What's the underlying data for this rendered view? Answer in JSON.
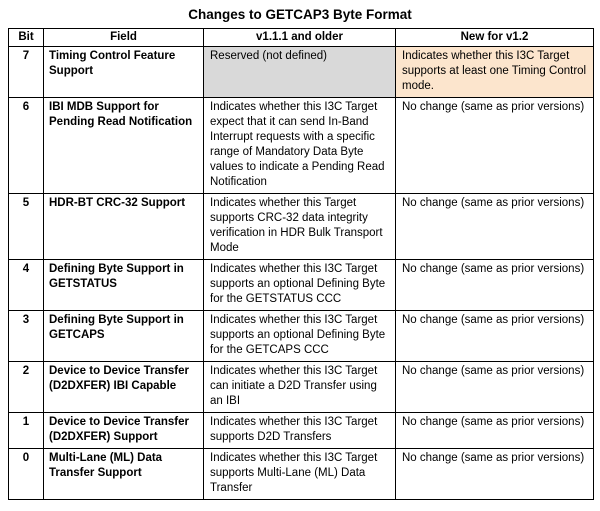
{
  "title": "Changes to GETCAP3 Byte Format",
  "colors": {
    "highlight_gray": "#D9D9D9",
    "highlight_orange": "#FCE5CD",
    "border": "#000000"
  },
  "table": {
    "headers": [
      "Bit",
      "Field",
      "v1.1.1 and older",
      "New for v1.2"
    ],
    "rows": [
      {
        "bit": "7",
        "field": "Timing Control Feature Support",
        "old": "Reserved (not defined)",
        "new": "Indicates whether this I3C Target supports at least one Timing Control mode.",
        "old_highlight": "gray",
        "new_highlight": "orange"
      },
      {
        "bit": "6",
        "field": "IBI MDB Support for Pending Read Notification",
        "old": "Indicates whether this I3C Target expect that it can send In-Band Interrupt requests with a specific range of Mandatory Data Byte values to indicate a Pending Read Notification",
        "new": "No change (same as prior versions)",
        "old_highlight": null,
        "new_highlight": null
      },
      {
        "bit": "5",
        "field": "HDR-BT CRC-32 Support",
        "old": "Indicates whether this Target supports CRC-32 data integrity verification in HDR Bulk Transport Mode",
        "new": "No change (same as prior versions)",
        "old_highlight": null,
        "new_highlight": null
      },
      {
        "bit": "4",
        "field": "Defining Byte Support in GETSTATUS",
        "old": "Indicates whether this I3C Target supports an optional Defining Byte for the GETSTATUS CCC",
        "new": "No change (same as prior versions)",
        "old_highlight": null,
        "new_highlight": null
      },
      {
        "bit": "3",
        "field": "Defining Byte Support in GETCAPS",
        "old": "Indicates whether this I3C Target supports an optional Defining Byte for the GETCAPS CCC",
        "new": "No change (same as prior versions)",
        "old_highlight": null,
        "new_highlight": null
      },
      {
        "bit": "2",
        "field": "Device to Device Transfer (D2DXFER) IBI Capable",
        "old": "Indicates whether this I3C Target can initiate a D2D Transfer using an IBI",
        "new": "No change (same as prior versions)",
        "old_highlight": null,
        "new_highlight": null
      },
      {
        "bit": "1",
        "field": "Device to Device Transfer (D2DXFER) Support",
        "old": "Indicates whether this I3C Target supports D2D Transfers",
        "new": "No change (same as prior versions)",
        "old_highlight": null,
        "new_highlight": null
      },
      {
        "bit": "0",
        "field": "Multi-Lane (ML) Data Transfer Support",
        "old": "Indicates whether this I3C Target supports Multi-Lane (ML) Data Transfer",
        "new": "No change (same as prior versions)",
        "old_highlight": null,
        "new_highlight": null
      }
    ]
  }
}
